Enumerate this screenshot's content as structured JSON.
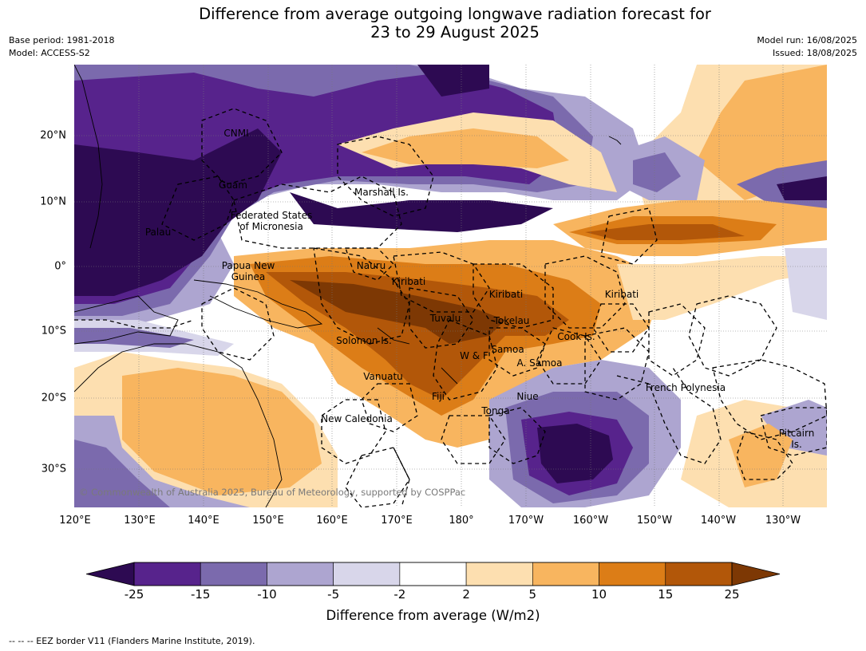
{
  "title_line1": "Difference from average outgoing longwave radiation forecast for",
  "title_line2": "23 to 29 August 2025",
  "meta_left": {
    "base_period": "Base period: 1981-2018",
    "model": "Model: ACCESS-S2"
  },
  "meta_right": {
    "model_run": "Model run: 16/08/2025",
    "issued": "Issued: 18/08/2025"
  },
  "lat_labels": [
    "20°N",
    "10°N",
    "0°",
    "10°S",
    "20°S",
    "30°S"
  ],
  "lon_labels": [
    "120°E",
    "130°E",
    "140°E",
    "150°E",
    "160°E",
    "170°E",
    "180°",
    "170°W",
    "160°W",
    "150°W",
    "140°W",
    "130°W"
  ],
  "places": {
    "cnmi": "CNMI",
    "guam": "Guam",
    "palau": "Palau",
    "marshall": "Marshall Is.",
    "fsm_1": "Federated States",
    "fsm_2": "of Micronesia",
    "png_1": "Papua New",
    "png_2": "Guinea",
    "nauru": "Nauru",
    "kiribati_w": "Kiribati",
    "kiribati_c": "Kiribati",
    "kiribati_e": "Kiribati",
    "tuvalu": "Tuvalu",
    "tokelau": "Tokelau",
    "cook": "Cook Is.",
    "solomon": "Solomon Is.",
    "wf": "W & F",
    "samoa": "Samoa",
    "asamoa": "A. Samoa",
    "vanuatu": "Vanuatu",
    "fiji": "Fiji",
    "niue": "Niue",
    "tonga": "Tonga",
    "french_polynesia": "French Polynesia",
    "new_caledonia": "New Caledonia",
    "pitcairn_1": "Pitcairn",
    "pitcairn_2": "Is."
  },
  "copyright": "© Commonwealth of Australia 2025, Bureau of Meteorology, supported by COSPPac",
  "colorbar": {
    "ticks": [
      "-25",
      "-15",
      "-10",
      "-5",
      "-2",
      "2",
      "5",
      "10",
      "15",
      "25"
    ],
    "colors": [
      "#2d0a52",
      "#57238c",
      "#7b6aad",
      "#ada5d0",
      "#d8d6ea",
      "#ffffff",
      "#fddfb0",
      "#f8b55f",
      "#dc7d17",
      "#b25709",
      "#7d3804"
    ],
    "label": "Difference from average (W/m2)"
  },
  "source_note": "--  --  -- EEZ border V11 (Flanders Marine Institute, 2019)."
}
